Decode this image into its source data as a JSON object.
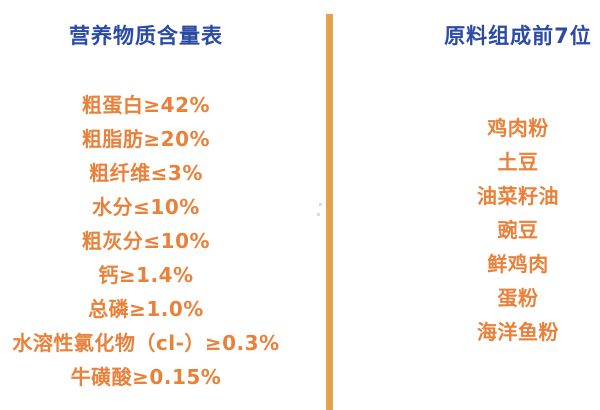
{
  "colors": {
    "title": "#2B4AA3",
    "item": "#E9813B",
    "divider": "#E5A14C",
    "background": "#FFFFFF"
  },
  "left_panel": {
    "title": "营养物质含量表",
    "items": [
      "粗蛋白≥42%",
      "粗脂肪≥20%",
      "粗纤维≤3%",
      "水分≤10%",
      "粗灰分≤10%",
      "钙≥1.4%",
      "总磷≥1.0%",
      "水溶性氯化物（cl-）≥0.3%",
      "牛磺酸≥0.15%"
    ]
  },
  "right_panel": {
    "title": "原料组成前7位",
    "items": [
      "鸡肉粉",
      "土豆",
      "油菜籽油",
      "豌豆",
      "鲜鸡肉",
      "蛋粉",
      "海洋鱼粉"
    ]
  }
}
